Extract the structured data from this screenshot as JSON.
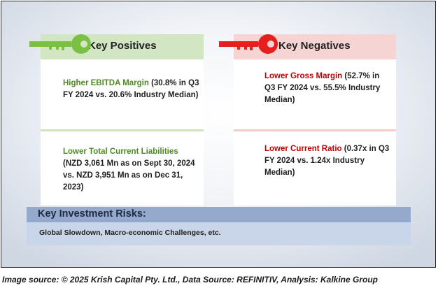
{
  "positives": {
    "title": "Key Positives",
    "items": [
      {
        "highlight": "Higher EBITDA Margin",
        "detail": " (30.8% in Q3 FY 2024 vs. 20.6% Industry Median)"
      },
      {
        "highlight": "Lower Total Current Liabilities",
        "detail": " (NZD 3,061 Mn as on Sept 30, 2024 vs. NZD 3,951 Mn as on Dec 31, 2023)"
      }
    ]
  },
  "negatives": {
    "title": "Key Negatives",
    "items": [
      {
        "highlight": "Lower Gross Margin",
        "detail": " (52.7% in Q3 FY 2024 vs. 55.5% Industry Median)"
      },
      {
        "highlight": "Lower Current Ratio",
        "detail": " (0.37x in Q3 FY 2024 vs. 1.24x Industry Median)"
      }
    ]
  },
  "risks": {
    "title": "Key Investment Risks:",
    "text": "Global Slowdown, Macro-economic Challenges, etc."
  },
  "source": "Image source: © 2025 Krish Capital Pty. Ltd., Data Source: REFINITIV, Analysis: Kalkine Group",
  "colors": {
    "positive": "#4e8a23",
    "negative": "#c00000",
    "positive_key": "#7ac143",
    "negative_key": "#e61e1e"
  },
  "icons": {
    "positive": "green-key-icon",
    "negative": "red-key-icon"
  }
}
